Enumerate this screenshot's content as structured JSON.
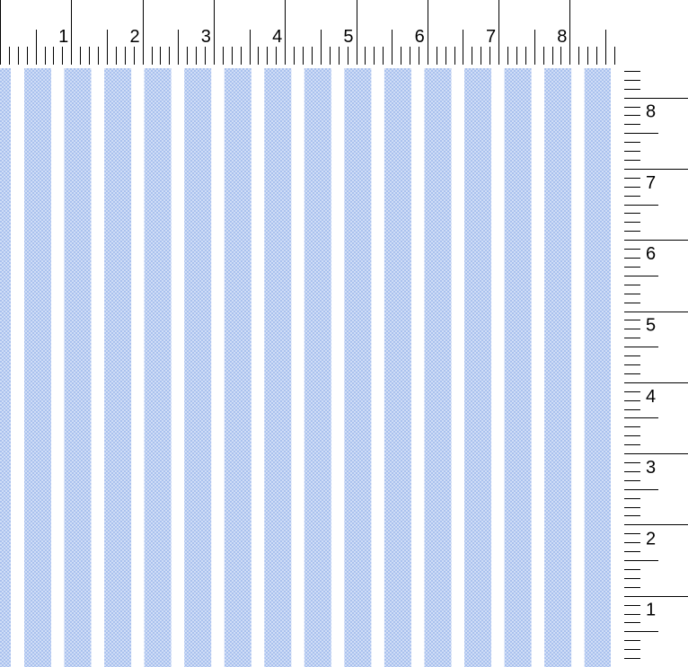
{
  "pattern": {
    "name": "striped fabric swatch",
    "stripe_color": "#a9c1ee",
    "check_color": "#ffffff",
    "background_color": "#ffffff",
    "stripe_count": 15
  },
  "top_ruler": {
    "unit": "inch",
    "labels": [
      "1",
      "2",
      "3",
      "4",
      "5",
      "6",
      "7",
      "8"
    ],
    "subdivisions": 8
  },
  "right_ruler": {
    "unit": "inch",
    "labels": [
      "1",
      "2",
      "3",
      "4",
      "5",
      "6",
      "7",
      "8"
    ],
    "subdivisions": 8
  }
}
